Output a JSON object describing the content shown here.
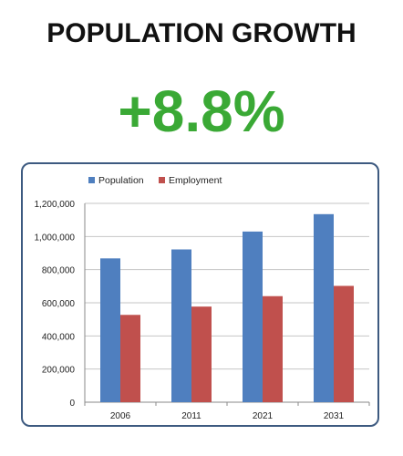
{
  "header": {
    "title": "POPULATION GROWTH",
    "stat": "+8.8%",
    "stat_color": "#3aa935"
  },
  "chart_data": {
    "type": "bar",
    "categories": [
      "2006",
      "2011",
      "2021",
      "2031"
    ],
    "series": [
      {
        "name": "Population",
        "values": [
          868000,
          922000,
          1030000,
          1135000
        ],
        "color": "#4f7fbf"
      },
      {
        "name": "Employment",
        "values": [
          527000,
          577000,
          640000,
          702000
        ],
        "color": "#c0504d"
      }
    ],
    "yticks": [
      "0",
      "200,000",
      "400,000",
      "600,000",
      "800,000",
      "1,000,000",
      "1,200,000"
    ],
    "ylim": [
      0,
      1200000
    ],
    "grid": true,
    "legend": "top-left"
  }
}
